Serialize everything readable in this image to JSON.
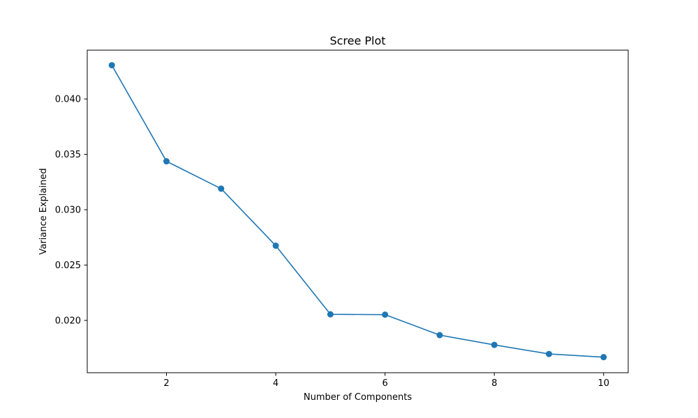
{
  "chart_data": {
    "type": "line",
    "title": "Scree Plot",
    "xlabel": "Number of Components",
    "ylabel": "Variance Explained",
    "x": [
      1,
      2,
      3,
      4,
      5,
      6,
      7,
      8,
      9,
      10
    ],
    "series": [
      {
        "values": [
          0.04305,
          0.03437,
          0.0319,
          0.02675,
          0.02055,
          0.02052,
          0.01867,
          0.01779,
          0.01697,
          0.01668
        ],
        "color": "#1f77b4",
        "marker": "circle"
      }
    ],
    "xlim": [
      0.55,
      10.45
    ],
    "ylim": [
      0.015275,
      0.04441
    ],
    "xticks": [
      2,
      4,
      6,
      8,
      10
    ],
    "xtick_labels": [
      "2",
      "4",
      "6",
      "8",
      "10"
    ],
    "yticks": [
      0.02,
      0.025,
      0.03,
      0.035,
      0.04
    ],
    "ytick_labels": [
      "0.020",
      "0.025",
      "0.030",
      "0.035",
      "0.040"
    ],
    "grid": false,
    "legend": "none"
  }
}
